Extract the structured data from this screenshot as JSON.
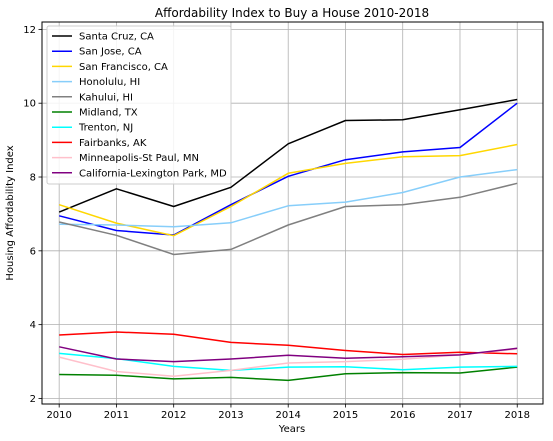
{
  "chart_data": {
    "type": "line",
    "title": "Affordability Index to Buy a House 2010-2018",
    "xlabel": "Years",
    "ylabel": "Housing Affordability Index",
    "x": [
      2010,
      2011,
      2012,
      2013,
      2014,
      2015,
      2016,
      2017,
      2018
    ],
    "xlim": [
      2009.7,
      2018.45
    ],
    "ylim": [
      1.85,
      12.2
    ],
    "yticks": [
      2,
      4,
      6,
      8,
      10,
      12
    ],
    "grid": true,
    "legend_position": "top-left",
    "series": [
      {
        "name": "Santa Cruz, CA",
        "color": "#000000",
        "values": [
          7.05,
          7.68,
          7.2,
          7.72,
          8.9,
          9.53,
          9.55,
          9.82,
          10.1
        ]
      },
      {
        "name": "San Jose, CA",
        "color": "#0000ff",
        "values": [
          6.95,
          6.55,
          6.43,
          7.25,
          8.02,
          8.47,
          8.68,
          8.8,
          10.0
        ]
      },
      {
        "name": "San Francisco, CA",
        "color": "#ffd700",
        "values": [
          7.25,
          6.75,
          6.41,
          7.2,
          8.1,
          8.37,
          8.55,
          8.58,
          8.88
        ]
      },
      {
        "name": "Honolulu, HI",
        "color": "#87cefa",
        "values": [
          6.72,
          6.7,
          6.65,
          6.76,
          7.22,
          7.32,
          7.58,
          8.0,
          8.2
        ]
      },
      {
        "name": "Kahului, HI",
        "color": "#808080",
        "values": [
          6.78,
          6.42,
          5.9,
          6.04,
          6.7,
          7.2,
          7.25,
          7.45,
          7.83
        ]
      },
      {
        "name": "Midland, TX",
        "color": "#008000",
        "values": [
          2.65,
          2.63,
          2.53,
          2.57,
          2.49,
          2.67,
          2.7,
          2.69,
          2.85
        ]
      },
      {
        "name": "Trenton, NJ",
        "color": "#00ffff",
        "values": [
          3.22,
          3.08,
          2.87,
          2.76,
          2.85,
          2.86,
          2.78,
          2.85,
          2.87
        ]
      },
      {
        "name": "Fairbanks, AK",
        "color": "#ff0000",
        "values": [
          3.72,
          3.8,
          3.74,
          3.52,
          3.44,
          3.3,
          3.19,
          3.25,
          3.21
        ]
      },
      {
        "name": "Minneapolis-St Paul, MN",
        "color": "#ffc0cb",
        "values": [
          3.12,
          2.73,
          2.6,
          2.76,
          2.96,
          3.0,
          3.06,
          3.18,
          3.34
        ]
      },
      {
        "name": "California-Lexington Park, MD",
        "color": "#800080",
        "values": [
          3.4,
          3.07,
          3.0,
          3.07,
          3.17,
          3.09,
          3.13,
          3.18,
          3.36
        ]
      }
    ]
  }
}
